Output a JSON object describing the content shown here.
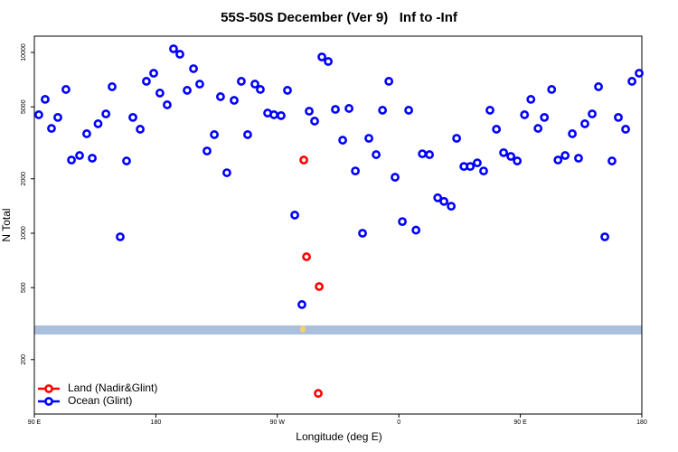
{
  "chart_data": {
    "type": "scatter",
    "title": "55S-50S December (Ver 9)   Inf to -Inf",
    "xlabel": "Longitude (deg E)",
    "ylabel": "N Total",
    "log_y": true,
    "legend": "bottom-left",
    "xlim": [
      90,
      540
    ],
    "xticks": [
      {
        "value": 90,
        "label": "90 E"
      },
      {
        "value": 180,
        "label": "180"
      },
      {
        "value": 270,
        "label": "90 W"
      },
      {
        "value": 360,
        "label": "0"
      },
      {
        "value": 450,
        "label": "90 E"
      },
      {
        "value": 540,
        "label": "180"
      }
    ],
    "ylim": [
      100,
      12300
    ],
    "yticks": [
      200,
      500,
      1000,
      2000,
      5000,
      10000
    ],
    "series": [
      {
        "name": "Land (Nadir&Glint)",
        "color": "#ff0000",
        "x": [
          289.6,
          291.6,
          301,
          300.3
        ],
        "values": [
          2540,
          741,
          507,
          130
        ]
      },
      {
        "name": "Ocean (Glint)",
        "color": "#0000ff",
        "x": [
          93.3,
          98,
          102.7,
          107.4,
          113.4,
          117.5,
          123.5,
          128.8,
          132.9,
          137.2,
          143,
          147.6,
          153.6,
          158.3,
          163,
          168.4,
          173,
          178.4,
          183,
          188.4,
          193.1,
          197.8,
          203.2,
          207.9,
          212.5,
          217.9,
          223.3,
          227.9,
          232.6,
          238,
          243.3,
          248,
          253.4,
          257.4,
          262.8,
          267.5,
          272.8,
          277.5,
          282.9,
          288.2,
          293.6,
          297.6,
          303,
          307.7,
          313,
          318.4,
          323.1,
          327.8,
          333.1,
          337.8,
          343.2,
          347.9,
          352.6,
          357.2,
          362.6,
          367.3,
          372.7,
          377.4,
          382.7,
          388.8,
          393.4,
          398.8,
          402.8,
          408.2,
          412.9,
          418.1,
          422.8,
          427.5,
          432.3,
          437.6,
          443,
          447.7,
          453.1,
          457.8,
          463.1,
          467.8,
          473.2,
          477.9,
          483.2,
          488.5,
          493.1,
          497.8,
          503.2,
          507.9,
          512.6,
          517.9,
          522.6,
          528,
          532.7,
          538
        ],
        "values": [
          4520,
          5500,
          3800,
          4370,
          6240,
          2540,
          2690,
          3550,
          2600,
          4030,
          4570,
          6460,
          955,
          2510,
          4370,
          3760,
          6920,
          7670,
          5960,
          5130,
          10470,
          9770,
          6170,
          8130,
          6680,
          2850,
          3510,
          5690,
          2160,
          5430,
          6920,
          3510,
          6680,
          6240,
          4620,
          4520,
          4470,
          6170,
          1260,
          403,
          4730,
          4170,
          9440,
          8910,
          4840,
          3270,
          4900,
          2210,
          1000,
          3350,
          2720,
          4790,
          6920,
          2040,
          1160,
          4790,
          1040,
          2750,
          2720,
          1570,
          1500,
          1410,
          3350,
          2340,
          2340,
          2450,
          2210,
          4790,
          3760,
          2790,
          2660,
          2510,
          4520,
          5500,
          3800,
          4370,
          6240,
          2540,
          2690,
          3550,
          2600,
          4030,
          4570,
          6460,
          955,
          2510,
          4370,
          3760,
          6920,
          7670
        ]
      }
    ]
  }
}
